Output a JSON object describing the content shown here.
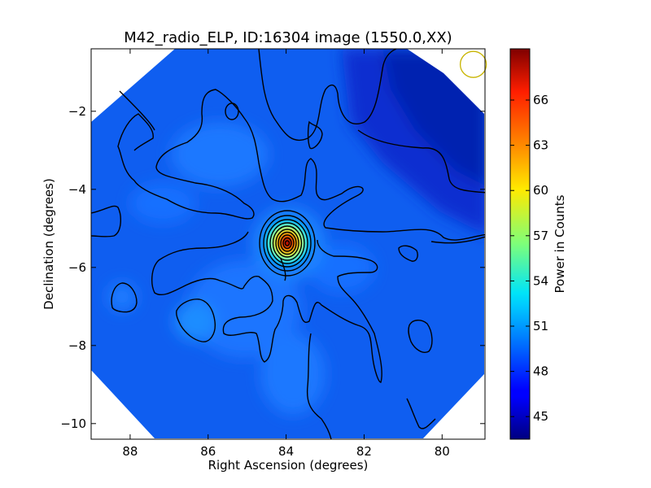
{
  "chart_data": {
    "type": "heatmap",
    "title": "M42_radio_ELP, ID:16304 image (1550.0,XX)",
    "xlabel": "Right Ascension (degrees)",
    "ylabel": "Declination (degrees)",
    "xlim": [
      89.0,
      78.9
    ],
    "ylim": [
      -10.4,
      -0.4
    ],
    "x_ticks": [
      88,
      86,
      84,
      82,
      80
    ],
    "x_tick_labels": [
      "88",
      "86",
      "84",
      "82",
      "80"
    ],
    "y_ticks": [
      -2,
      -4,
      -6,
      -8,
      -10
    ],
    "y_tick_labels": [
      "−2",
      "−4",
      "−6",
      "−8",
      "−10"
    ],
    "colorbar": {
      "label": "Power in Counts",
      "min": 43.5,
      "max": 69.4,
      "ticks": [
        45,
        48,
        51,
        54,
        57,
        60,
        63,
        66
      ],
      "tick_labels": [
        "45",
        "48",
        "51",
        "54",
        "57",
        "60",
        "63",
        "66"
      ],
      "colormap": "jet"
    },
    "peak": {
      "ra": 83.75,
      "dec": -5.42,
      "value": 69.0
    },
    "beam": {
      "ra": 79.2,
      "dec": -0.8,
      "color": "#c8b400"
    },
    "background_level": 47.5
  }
}
